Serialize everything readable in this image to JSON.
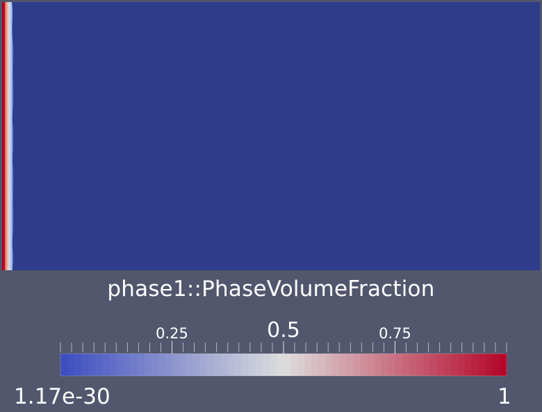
{
  "chart_data": {
    "type": "heatmap",
    "field_name": "phase1::PhaseVolumeFraction",
    "colormap": "Cool to Warm",
    "colormap_stops": [
      "#3b4cc0",
      "#dddddd",
      "#b40426"
    ],
    "background_color": "#52576e",
    "range": [
      1.17e-30,
      1
    ],
    "range_labels": {
      "min": "1.17e-30",
      "max": "1"
    },
    "ticks": [
      {
        "value": 0.25,
        "label": "0.25"
      },
      {
        "value": 0.5,
        "label": "0.5"
      },
      {
        "value": 0.75,
        "label": "0.75"
      }
    ],
    "minor_tick_count": 40,
    "field_description": {
      "dominant_value": 0.0,
      "interface_values": [
        1.0,
        0.5,
        0.0
      ]
    }
  }
}
